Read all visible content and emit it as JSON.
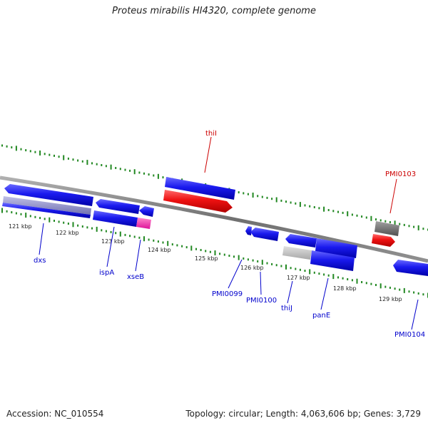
{
  "header": {
    "title": "Proteus mirabilis HI4320, complete genome"
  },
  "footer": {
    "accession": "Accession: NC_010554",
    "topology": "Topology: circular; Length: 4,063,606 bp; Genes: 3,729"
  },
  "ruler": {
    "ticks": [
      "121 kbp",
      "122 kbp",
      "123 kbp",
      "124 kbp",
      "125 kbp",
      "126 kbp",
      "127 kbp",
      "128 kbp",
      "129 kbp"
    ]
  },
  "genes": [
    {
      "name": "dxs",
      "color": "#0000cc"
    },
    {
      "name": "ispA",
      "color": "#0000cc"
    },
    {
      "name": "xseB",
      "color": "#0000cc"
    },
    {
      "name": "thiI",
      "color": "#cc0000"
    },
    {
      "name": "PMI0099",
      "color": "#0000cc"
    },
    {
      "name": "PMI0100",
      "color": "#0000cc"
    },
    {
      "name": "thiJ",
      "color": "#0000cc"
    },
    {
      "name": "panE",
      "color": "#0000cc"
    },
    {
      "name": "PMI0103",
      "color": "#cc0000"
    },
    {
      "name": "PMI0104",
      "color": "#0000cc"
    }
  ],
  "colors": {
    "forward_cds": "#1a1aee",
    "reverse_cds": "#ee1111",
    "pseudogene": "#b8b8b8",
    "other_feature": "#ff33aa",
    "backbone": "#808080",
    "tick_marks": "#228822"
  }
}
